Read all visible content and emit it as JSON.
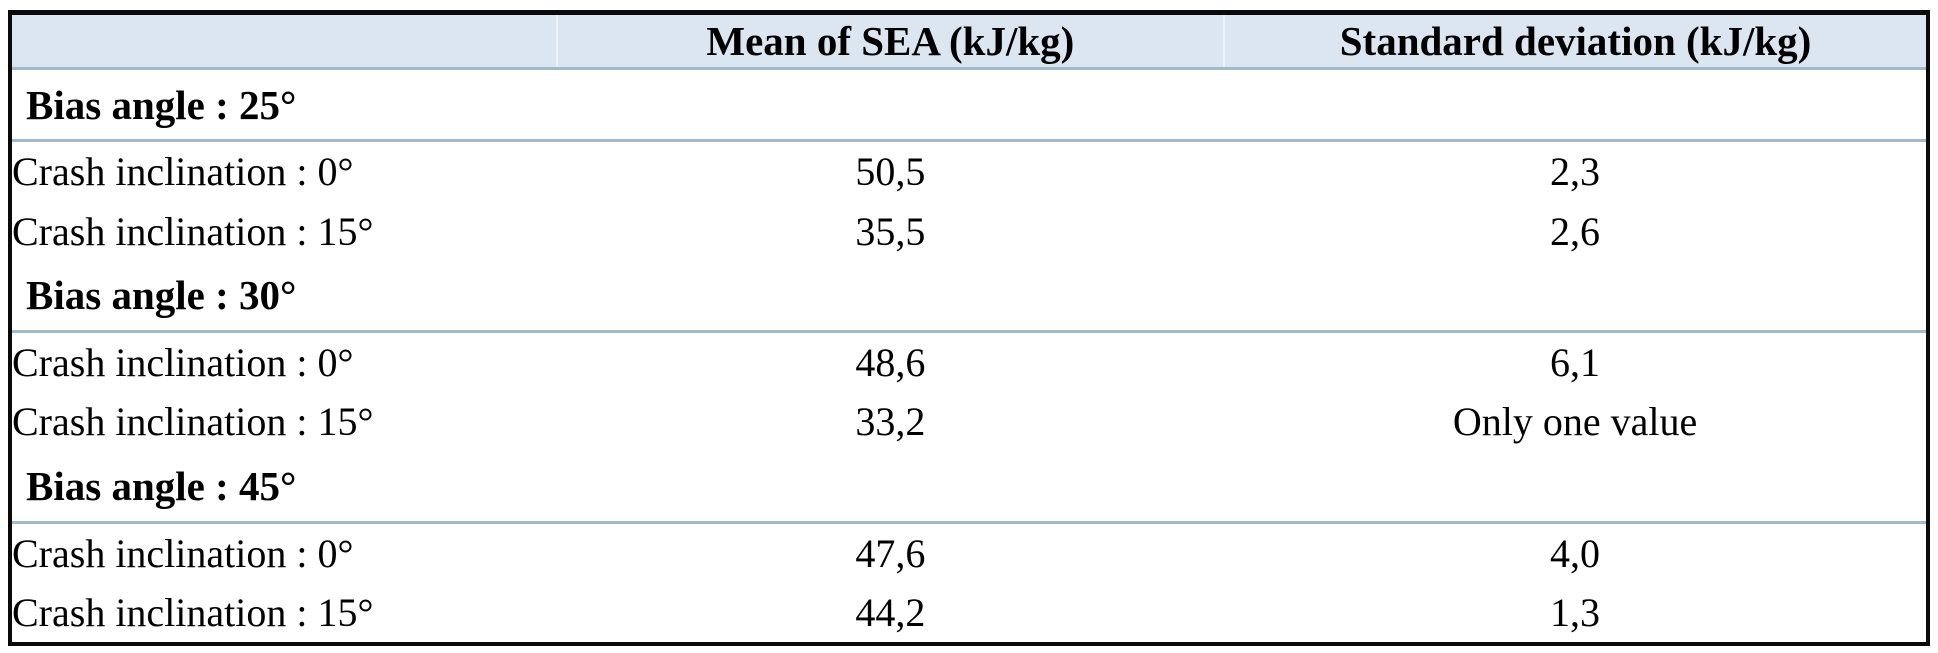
{
  "table": {
    "columns": [
      "",
      "Mean of SEA (kJ/kg)",
      "Standard deviation (kJ/kg)"
    ],
    "sections": [
      {
        "heading": "Bias angle : 25°",
        "rows": [
          {
            "label": "Crash inclination : 0°",
            "mean": "50,5",
            "std": "2,3"
          },
          {
            "label": "Crash inclination : 15°",
            "mean": "35,5",
            "std": "2,6"
          }
        ]
      },
      {
        "heading": "Bias angle : 30°",
        "rows": [
          {
            "label": "Crash inclination : 0°",
            "mean": "48,6",
            "std": "6,1"
          },
          {
            "label": "Crash inclination : 15°",
            "mean": "33,2",
            "std": "Only one value"
          }
        ]
      },
      {
        "heading": "Bias angle : 45°",
        "rows": [
          {
            "label": "Crash inclination : 0°",
            "mean": "47,6",
            "std": "4,0"
          },
          {
            "label": "Crash inclination : 15°",
            "mean": "44,2",
            "std": "1,3"
          }
        ]
      }
    ],
    "colors": {
      "header_bg": "#dce6f1",
      "section_rule": "#a2b8cc",
      "outer_border": "#0a0a0a",
      "header_divider": "#edf2f8",
      "text": "#000000"
    }
  }
}
